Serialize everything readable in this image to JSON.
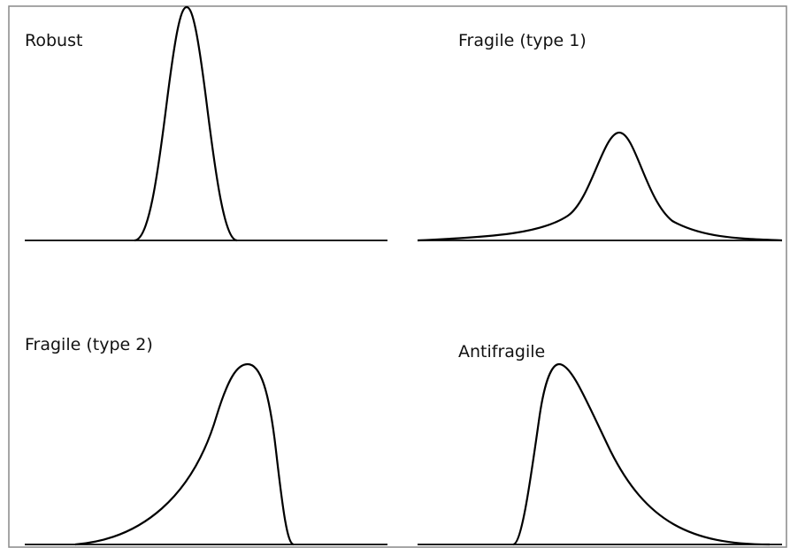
{
  "panels": [
    {
      "label": "Robust"
    },
    {
      "label": "Fragile (type 1)"
    },
    {
      "label": "Fragile (type 2)"
    },
    {
      "label": "Antifragile"
    }
  ]
}
